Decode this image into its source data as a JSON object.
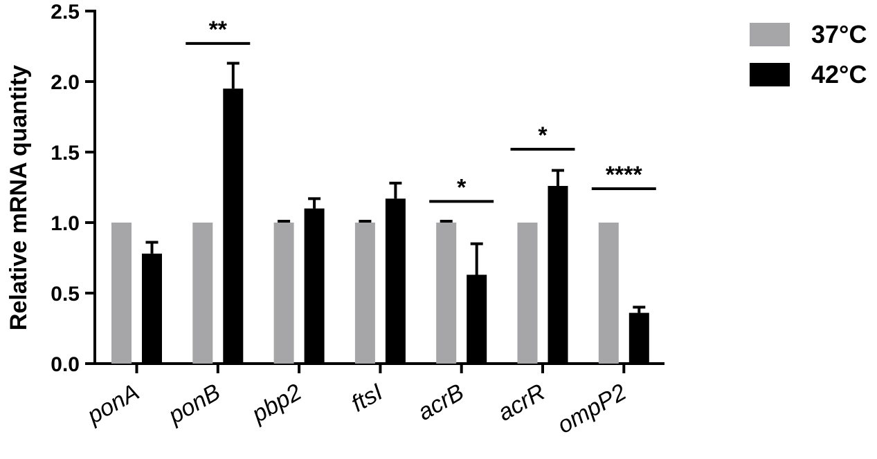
{
  "chart_data": {
    "type": "bar",
    "title": "",
    "xlabel": "",
    "ylabel": "Relative mRNA quantity",
    "ylim": [
      0,
      2.5
    ],
    "yticks": [
      "0.0",
      "0.5",
      "1.0",
      "1.5",
      "2.0",
      "2.5"
    ],
    "grid": false,
    "legend_position": "top-right",
    "categories": [
      "ponA",
      "ponB",
      "pbp2",
      "ftsI",
      "acrB",
      "acrR",
      "ompP2"
    ],
    "series": [
      {
        "name": "37°C",
        "color": "#a6a6a8",
        "values": [
          1.0,
          1.0,
          1.0,
          1.0,
          1.0,
          1.0,
          1.0
        ],
        "errors": [
          0,
          0,
          0.01,
          0.01,
          0.01,
          0,
          0
        ]
      },
      {
        "name": "42°C",
        "color": "#000000",
        "values": [
          0.78,
          1.95,
          1.1,
          1.17,
          0.63,
          1.26,
          0.36
        ],
        "errors": [
          0.08,
          0.18,
          0.07,
          0.11,
          0.22,
          0.11,
          0.04
        ]
      }
    ],
    "annotations": [
      {
        "text": "**",
        "category": "ponB",
        "y": 2.27
      },
      {
        "text": "*",
        "category": "acrB",
        "y": 1.15
      },
      {
        "text": "*",
        "category": "acrR",
        "y": 1.52
      },
      {
        "text": "****",
        "category": "ompP2",
        "y": 1.24
      }
    ]
  }
}
